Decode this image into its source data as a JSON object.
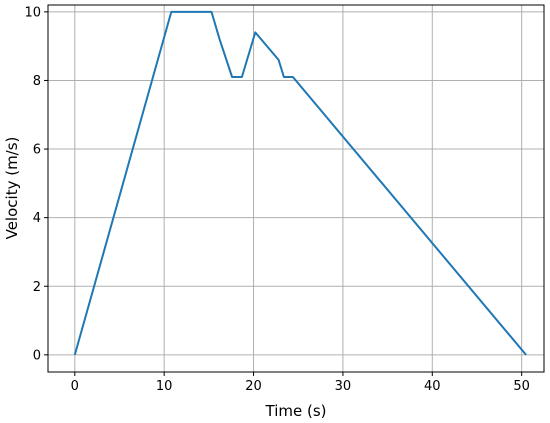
{
  "chart_data": {
    "type": "line",
    "xlabel": "Time (s)",
    "ylabel": "Velocity (m/s)",
    "xlim": [
      -3,
      52.5
    ],
    "ylim": [
      -0.5,
      10.2
    ],
    "xticks": [
      0,
      10,
      20,
      30,
      40,
      50
    ],
    "yticks": [
      0,
      2,
      4,
      6,
      8,
      10
    ],
    "grid": true,
    "series": [
      {
        "color": "#1f77b4",
        "x": [
          0,
          10.8,
          15.3,
          16.2,
          17.6,
          18.7,
          20.2,
          22.8,
          23.4,
          24.4,
          50.5
        ],
        "y": [
          0,
          10,
          10,
          9.2,
          8.1,
          8.1,
          9.4,
          8.6,
          8.1,
          8.1,
          0
        ]
      }
    ]
  }
}
